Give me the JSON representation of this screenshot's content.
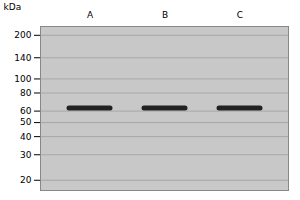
{
  "chart_data": {
    "type": "band",
    "ylabel": "kDa",
    "categories": [
      "A",
      "B",
      "C"
    ],
    "values": [
      63,
      63,
      63
    ],
    "color": "#222222",
    "ylim": [
      17,
      230
    ],
    "yticks": [
      200,
      140,
      100,
      80,
      60,
      50,
      40,
      30,
      20
    ],
    "log": "y",
    "grid": true
  }
}
